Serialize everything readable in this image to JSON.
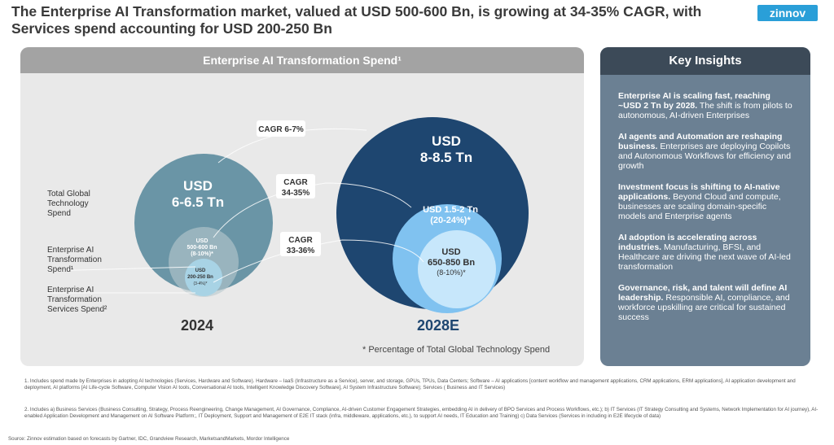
{
  "title": "The Enterprise AI Transformation market, valued at USD 500-600 Bn, is growing at 34-35% CAGR, with Services spend accounting for USD 200-250 Bn",
  "logo": "zinnov",
  "left_panel": {
    "header": "Enterprise AI Transformation Spend¹",
    "legend": [
      "Total Global Technology Spend",
      "Enterprise AI Transformation Spend¹",
      "Enterprise AI Transformation Services Spend²"
    ],
    "y2024": {
      "year": "2024",
      "total": [
        "USD",
        "6-6.5 Tn"
      ],
      "ai": [
        "USD",
        "500-600 Bn",
        "(8-10%)*"
      ],
      "services": [
        "USD",
        "200-250 Bn",
        "(3-4%)*"
      ]
    },
    "y2028": {
      "year": "2028E",
      "total": [
        "USD",
        "8-8.5 Tn"
      ],
      "ai": [
        "USD 1.5-2 Tn",
        "(20-24%)*"
      ],
      "services": [
        "USD",
        "650-850 Bn",
        "(8-10%)*"
      ]
    },
    "cagr": [
      "CAGR 6-7%",
      "CAGR",
      "34-35%",
      "CAGR",
      "33-36%"
    ],
    "note": "* Percentage of Total Global Technology Spend"
  },
  "colors": {
    "total_2024": "#6a95a6",
    "total_2028": "#1e4670",
    "ai_2028": "#80c2f0",
    "services_2028": "#c7e7fb",
    "services_2024": "#a8d3e5"
  },
  "insights": {
    "header": "Key Insights",
    "items": [
      {
        "bold": "Enterprise AI is scaling fast, reaching ~USD 2 Tn by 2028.",
        "text": " The shift is from pilots to autonomous, AI-driven Enterprises"
      },
      {
        "bold": "AI agents and Automation are reshaping business.",
        "text": " Enterprises are deploying Copilots and Autonomous Workflows for efficiency and growth"
      },
      {
        "bold": "Investment focus is shifting to AI-native applications.",
        "text": " Beyond Cloud and compute, businesses are scaling domain-specific models and Enterprise agents"
      },
      {
        "bold": "AI adoption is accelerating across industries.",
        "text": " Manufacturing, BFSI, and Healthcare are driving the next wave of AI-led transformation"
      },
      {
        "bold": "Governance, risk, and talent will define AI leadership.",
        "text": " Responsible AI, compliance, and workforce upskilling are critical for sustained success"
      }
    ]
  },
  "footnotes": [
    "1.  Includes spend made by Enterprises in adopting AI technologies (Services, Hardware and Software). Hardware – IaaS (Infrastructure as a Service), server, and storage, GPUs, TPUs, Data Centers; Software – AI applications [content workflow and management applications, CRM applications, ERM applications], AI application development and deployment, AI platforms [AI Life-cycle Software, Computer Vision AI tools, Conversational AI tools, Intelligent Knowledge Discovery Software], AI System Infrastructure Software); Services ( Business and IT Services)",
    "2.  Includes a) Business Services (Business Consulting, Strategy, Process Reengineering, Change Management, AI Governance, Compliance, AI-driven Customer Engagement Strategies, embedding AI in delivery of BPO Services and Process Workflows, etc.); b)  IT Services (IT Strategy Consulting and Systems, Network Implementation for AI journey), AI-enabled Application Development and Management on AI Software Platform;, IT Deployment, Support and Management of E2E IT stack (infra, middleware, applications, etc.), to support AI needs, IT Education and Training) c) Data Services (Services in including in E2E lifecycle of data)"
  ],
  "source": "Source: Zinnov estimation based on forecasts by Gartner, IDC, Grandview Research, MarketsandMarkets, Mordor Intelligence"
}
